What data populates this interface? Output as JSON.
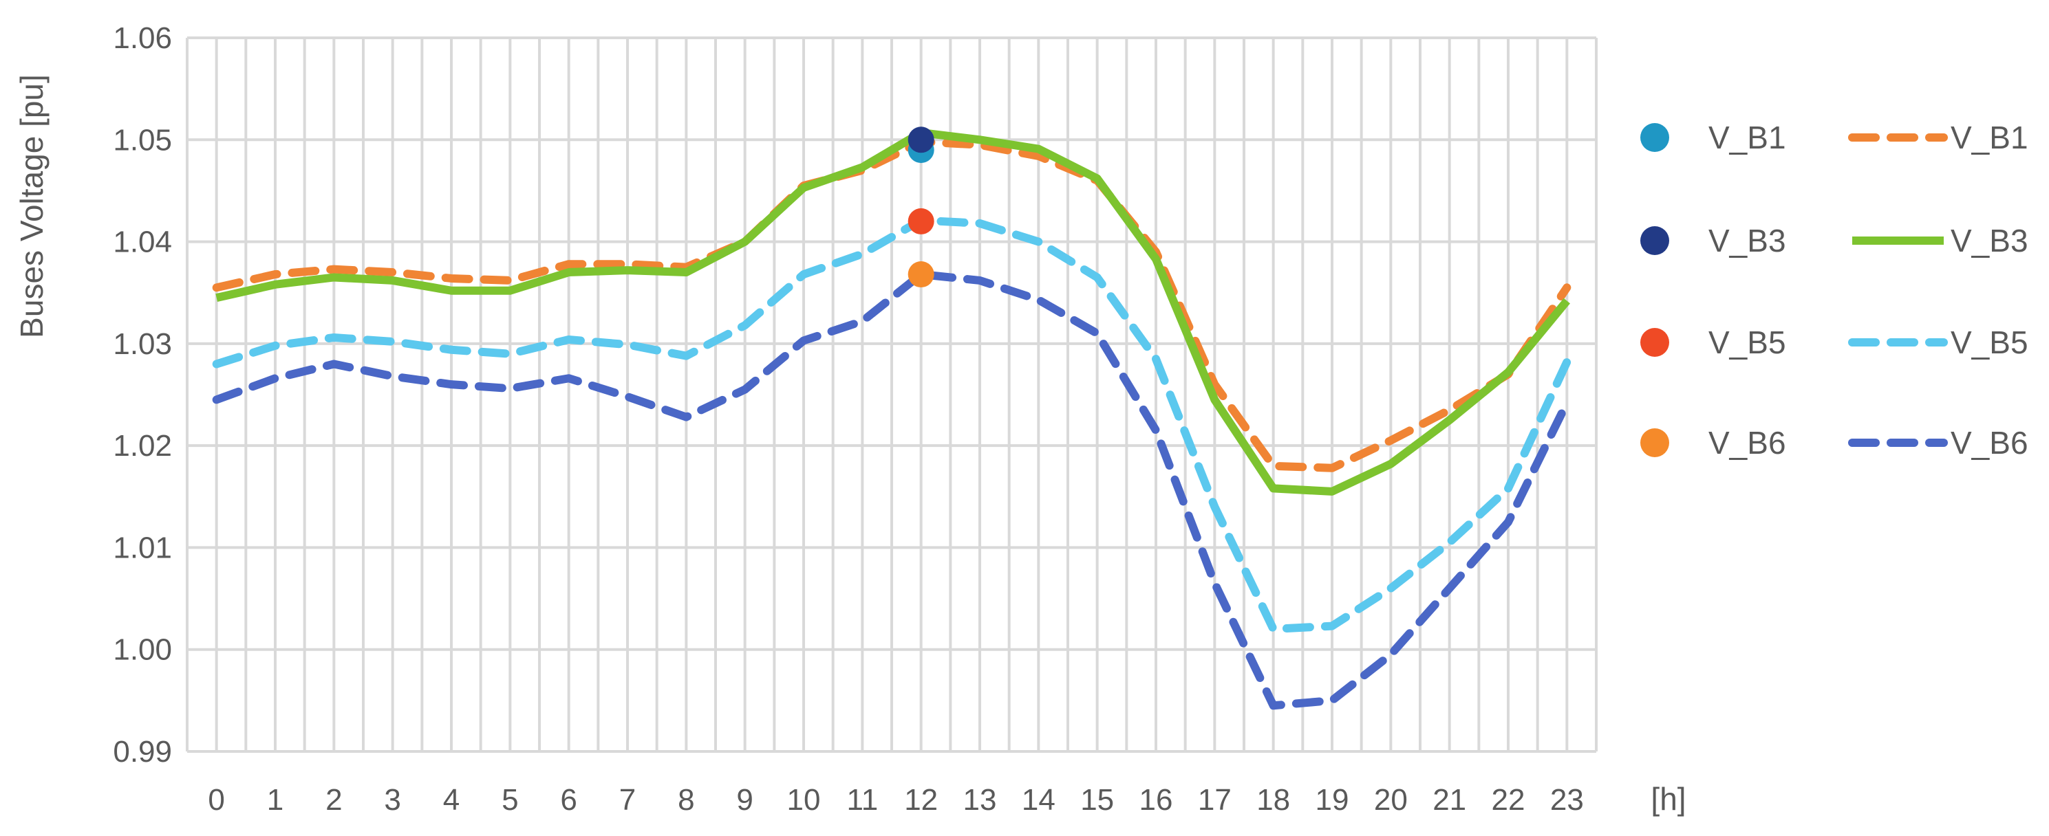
{
  "chart_data": {
    "type": "line",
    "xlabel": "[h]",
    "ylabel": "Buses Voltage [pu]",
    "ylim": [
      0.99,
      1.06
    ],
    "yticks": [
      "0.99",
      "1.00",
      "1.01",
      "1.02",
      "1.03",
      "1.04",
      "1.05",
      "1.06"
    ],
    "x": [
      0,
      1,
      2,
      3,
      4,
      5,
      6,
      7,
      8,
      9,
      10,
      11,
      12,
      13,
      14,
      15,
      16,
      17,
      18,
      19,
      20,
      21,
      22,
      23
    ],
    "grid": "on",
    "legend_position": "right",
    "series": [
      {
        "name": "V_B1",
        "style": "dashed",
        "color": "#F08434",
        "values": [
          1.0355,
          1.0368,
          1.0373,
          1.037,
          1.0364,
          1.0362,
          1.0378,
          1.0378,
          1.0375,
          1.04,
          1.0455,
          1.047,
          1.0498,
          1.0495,
          1.0484,
          1.046,
          1.039,
          1.026,
          1.018,
          1.0178,
          1.0205,
          1.0235,
          1.027,
          1.0355
        ]
      },
      {
        "name": "V_B3",
        "style": "solid",
        "color": "#7DC32F",
        "values": [
          1.0345,
          1.0358,
          1.0365,
          1.0362,
          1.0352,
          1.0352,
          1.037,
          1.0372,
          1.037,
          1.04,
          1.0453,
          1.0473,
          1.0507,
          1.05,
          1.0491,
          1.0462,
          1.0383,
          1.0245,
          1.0158,
          1.0155,
          1.0182,
          1.0225,
          1.0272,
          1.0342
        ]
      },
      {
        "name": "V_B5",
        "style": "dashed",
        "color": "#5BC8EE",
        "values": [
          1.028,
          1.0298,
          1.0306,
          1.0302,
          1.0294,
          1.029,
          1.0304,
          1.0299,
          1.0288,
          1.0318,
          1.0368,
          1.0388,
          1.0421,
          1.0418,
          1.04,
          1.0365,
          1.0285,
          1.014,
          1.002,
          1.0023,
          1.006,
          1.0105,
          1.0158,
          1.0282
        ]
      },
      {
        "name": "V_B6",
        "style": "dashed",
        "color": "#4A67C6",
        "values": [
          1.0245,
          1.0266,
          1.028,
          1.0268,
          1.026,
          1.0256,
          1.0266,
          1.0248,
          1.0228,
          1.0255,
          1.0303,
          1.0322,
          1.0368,
          1.0362,
          1.0343,
          1.031,
          1.0215,
          1.0065,
          0.9945,
          0.995,
          0.9995,
          1.006,
          1.0125,
          1.0242
        ]
      }
    ],
    "markers": [
      {
        "name": "V_B1",
        "x": 12,
        "y": 1.049,
        "color": "#1F97C4"
      },
      {
        "name": "V_B3",
        "x": 12,
        "y": 1.05,
        "color": "#223A86"
      },
      {
        "name": "V_B5",
        "x": 12,
        "y": 1.042,
        "color": "#EF4A25"
      },
      {
        "name": "V_B6",
        "x": 12,
        "y": 1.0368,
        "color": "#F58A2A"
      }
    ]
  }
}
